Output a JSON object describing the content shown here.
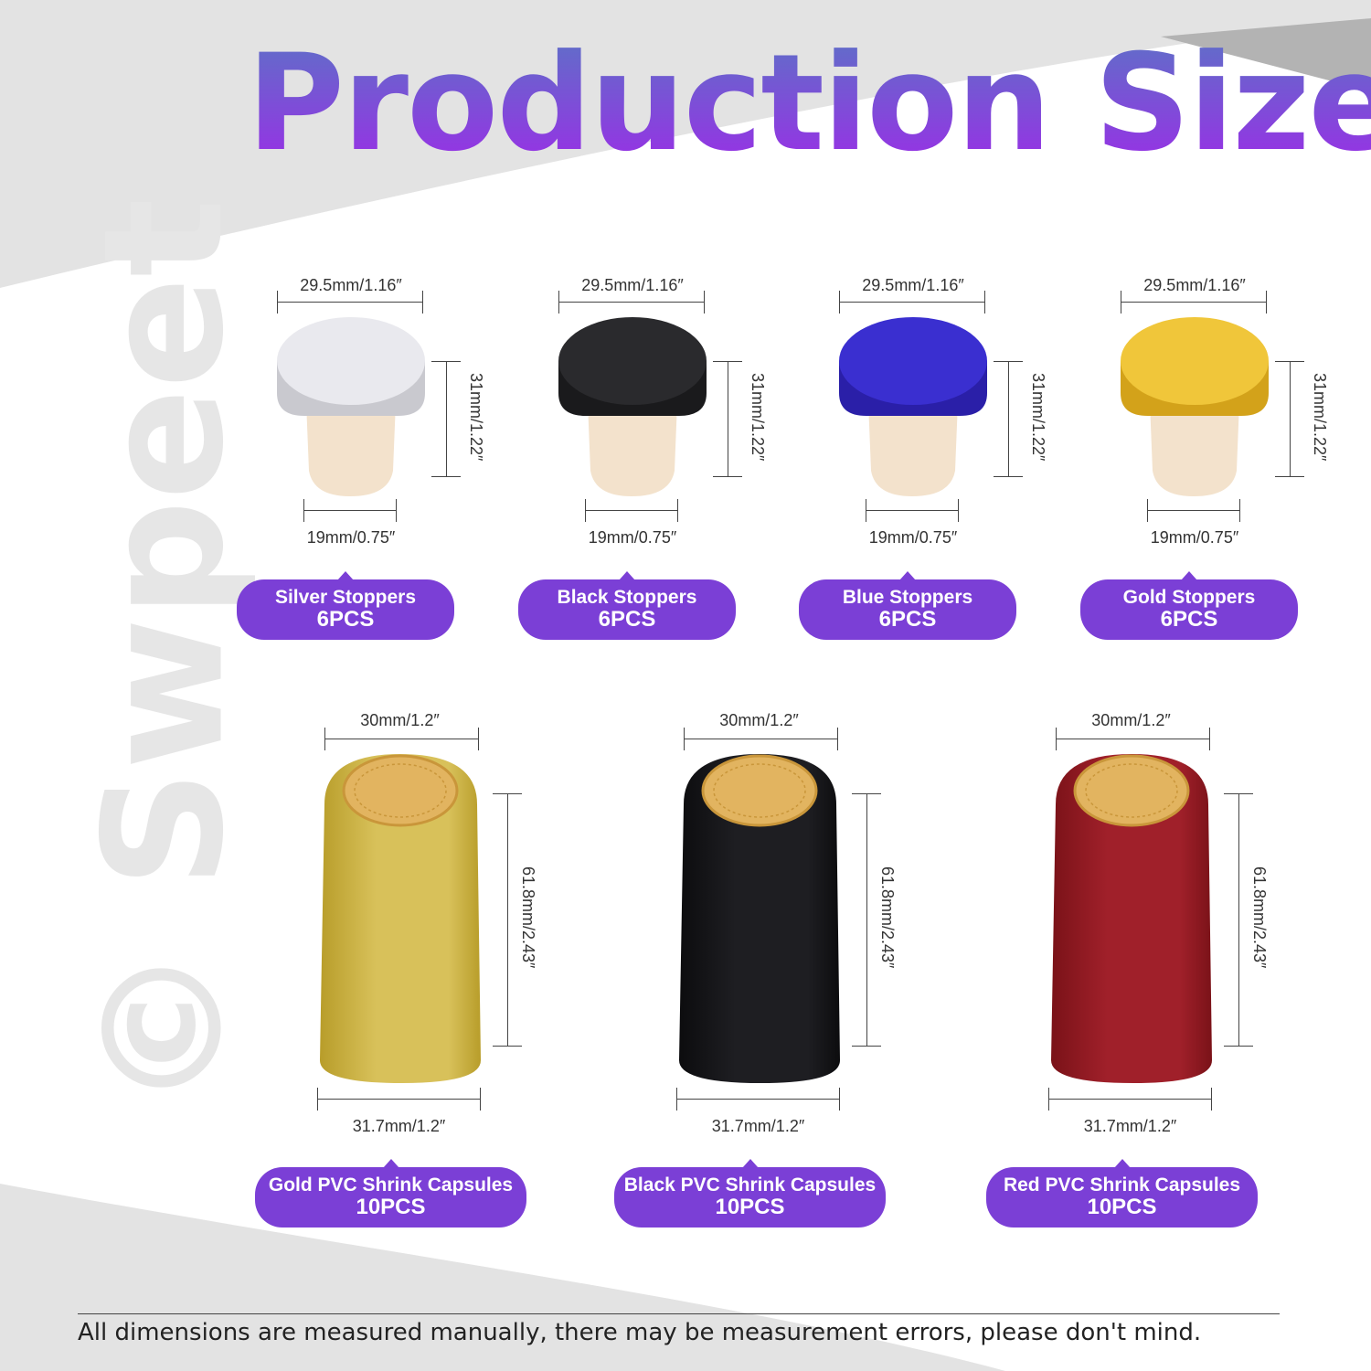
{
  "title": "Production Size",
  "watermark": "© Swpeet",
  "stoppers": [
    {
      "name": "Silver Stoppers",
      "qty": "6PCS",
      "top_width": "29.5mm/1.16″",
      "height": "31mm/1.22″",
      "bottom_width": "19mm/0.75″",
      "color": "#c9c9cf",
      "top_color": "#e9e9ee"
    },
    {
      "name": "Black Stoppers",
      "qty": "6PCS",
      "top_width": "29.5mm/1.16″",
      "height": "31mm/1.22″",
      "bottom_width": "19mm/0.75″",
      "color": "#1a1a1c",
      "top_color": "#2a2a2d"
    },
    {
      "name": "Blue Stoppers",
      "qty": "6PCS",
      "top_width": "29.5mm/1.16″",
      "height": "31mm/1.22″",
      "bottom_width": "19mm/0.75″",
      "color": "#2a1fa8",
      "top_color": "#3a2fd0"
    },
    {
      "name": "Gold Stoppers",
      "qty": "6PCS",
      "top_width": "29.5mm/1.16″",
      "height": "31mm/1.22″",
      "bottom_width": "19mm/0.75″",
      "color": "#d3a21a",
      "top_color": "#f0c63a"
    }
  ],
  "capsules": [
    {
      "name": "Gold PVC Shrink Capsules",
      "qty": "10PCS",
      "top_width": "30mm/1.2″",
      "height": "61.8mm/2.43″",
      "bottom_width": "31.7mm/1.2″",
      "color": "#d8c15a",
      "shade": "#b89d2a"
    },
    {
      "name": "Black PVC Shrink Capsules",
      "qty": "10PCS",
      "top_width": "30mm/1.2″",
      "height": "61.8mm/2.43″",
      "bottom_width": "31.7mm/1.2″",
      "color": "#1e1e22",
      "shade": "#0c0c0e"
    },
    {
      "name": "Red PVC Shrink Capsules",
      "qty": "10PCS",
      "top_width": "30mm/1.2″",
      "height": "61.8mm/2.43″",
      "bottom_width": "31.7mm/1.2″",
      "color": "#a0202a",
      "shade": "#7a1218"
    }
  ],
  "colors": {
    "accent": "#7b3fd6",
    "cork": "#f3e2cc",
    "seal": "#e2b460"
  },
  "footer": "All dimensions are measured manually, there may be measurement errors, please don't mind."
}
